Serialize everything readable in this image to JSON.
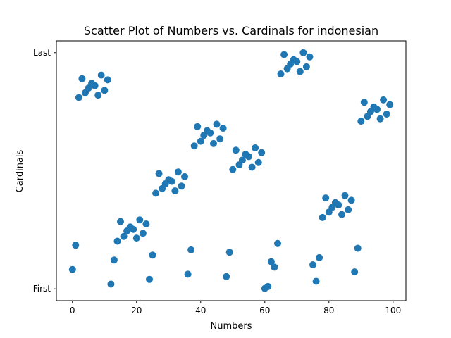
{
  "chart_data": {
    "type": "scatter",
    "title": "Scatter Plot of Numbers vs. Cardinals for indonesian",
    "xlabel": "Numbers",
    "ylabel": "Cardinals",
    "xlim": [
      -5,
      104
    ],
    "ylim": [
      -0.05,
      1.05
    ],
    "xticks": [
      0,
      20,
      40,
      60,
      80,
      100
    ],
    "yticks": [
      {
        "value": 0,
        "label": "First"
      },
      {
        "value": 1,
        "label": "Last"
      }
    ],
    "grid": false,
    "color": "#1f77b4",
    "points": [
      {
        "x": 0,
        "y": 0.082
      },
      {
        "x": 1,
        "y": 0.185
      },
      {
        "x": 2,
        "y": 0.81
      },
      {
        "x": 3,
        "y": 0.89
      },
      {
        "x": 4,
        "y": 0.83
      },
      {
        "x": 5,
        "y": 0.85
      },
      {
        "x": 6,
        "y": 0.87
      },
      {
        "x": 7,
        "y": 0.86
      },
      {
        "x": 8,
        "y": 0.82
      },
      {
        "x": 9,
        "y": 0.905
      },
      {
        "x": 10,
        "y": 0.84
      },
      {
        "x": 11,
        "y": 0.885
      },
      {
        "x": 12,
        "y": 0.02
      },
      {
        "x": 13,
        "y": 0.122
      },
      {
        "x": 14,
        "y": 0.202
      },
      {
        "x": 15,
        "y": 0.285
      },
      {
        "x": 16,
        "y": 0.222
      },
      {
        "x": 17,
        "y": 0.245
      },
      {
        "x": 18,
        "y": 0.262
      },
      {
        "x": 19,
        "y": 0.252
      },
      {
        "x": 20,
        "y": 0.215
      },
      {
        "x": 21,
        "y": 0.292
      },
      {
        "x": 22,
        "y": 0.235
      },
      {
        "x": 23,
        "y": 0.275
      },
      {
        "x": 24,
        "y": 0.04
      },
      {
        "x": 25,
        "y": 0.143
      },
      {
        "x": 26,
        "y": 0.405
      },
      {
        "x": 27,
        "y": 0.488
      },
      {
        "x": 28,
        "y": 0.425
      },
      {
        "x": 29,
        "y": 0.445
      },
      {
        "x": 30,
        "y": 0.462
      },
      {
        "x": 31,
        "y": 0.455
      },
      {
        "x": 32,
        "y": 0.415
      },
      {
        "x": 33,
        "y": 0.495
      },
      {
        "x": 34,
        "y": 0.435
      },
      {
        "x": 35,
        "y": 0.475
      },
      {
        "x": 36,
        "y": 0.062
      },
      {
        "x": 37,
        "y": 0.165
      },
      {
        "x": 38,
        "y": 0.605
      },
      {
        "x": 39,
        "y": 0.687
      },
      {
        "x": 40,
        "y": 0.625
      },
      {
        "x": 41,
        "y": 0.65
      },
      {
        "x": 42,
        "y": 0.67
      },
      {
        "x": 43,
        "y": 0.66
      },
      {
        "x": 44,
        "y": 0.615
      },
      {
        "x": 45,
        "y": 0.697
      },
      {
        "x": 46,
        "y": 0.635
      },
      {
        "x": 47,
        "y": 0.68
      },
      {
        "x": 48,
        "y": 0.052
      },
      {
        "x": 49,
        "y": 0.155
      },
      {
        "x": 50,
        "y": 0.505
      },
      {
        "x": 51,
        "y": 0.587
      },
      {
        "x": 52,
        "y": 0.525
      },
      {
        "x": 53,
        "y": 0.545
      },
      {
        "x": 54,
        "y": 0.57
      },
      {
        "x": 55,
        "y": 0.56
      },
      {
        "x": 56,
        "y": 0.515
      },
      {
        "x": 57,
        "y": 0.597
      },
      {
        "x": 58,
        "y": 0.535
      },
      {
        "x": 59,
        "y": 0.577
      },
      {
        "x": 60,
        "y": 0.002
      },
      {
        "x": 61,
        "y": 0.01
      },
      {
        "x": 62,
        "y": 0.115
      },
      {
        "x": 63,
        "y": 0.092
      },
      {
        "x": 64,
        "y": 0.192
      },
      {
        "x": 65,
        "y": 0.91
      },
      {
        "x": 66,
        "y": 0.992
      },
      {
        "x": 67,
        "y": 0.932
      },
      {
        "x": 68,
        "y": 0.952
      },
      {
        "x": 69,
        "y": 0.97
      },
      {
        "x": 70,
        "y": 0.962
      },
      {
        "x": 71,
        "y": 0.92
      },
      {
        "x": 72,
        "y": 1.0
      },
      {
        "x": 73,
        "y": 0.94
      },
      {
        "x": 74,
        "y": 0.982
      },
      {
        "x": 75,
        "y": 0.102
      },
      {
        "x": 76,
        "y": 0.032
      },
      {
        "x": 77,
        "y": 0.132
      },
      {
        "x": 78,
        "y": 0.302
      },
      {
        "x": 79,
        "y": 0.385
      },
      {
        "x": 80,
        "y": 0.325
      },
      {
        "x": 81,
        "y": 0.345
      },
      {
        "x": 82,
        "y": 0.365
      },
      {
        "x": 83,
        "y": 0.355
      },
      {
        "x": 84,
        "y": 0.315
      },
      {
        "x": 85,
        "y": 0.395
      },
      {
        "x": 86,
        "y": 0.335
      },
      {
        "x": 87,
        "y": 0.375
      },
      {
        "x": 88,
        "y": 0.072
      },
      {
        "x": 89,
        "y": 0.172
      },
      {
        "x": 90,
        "y": 0.71
      },
      {
        "x": 91,
        "y": 0.79
      },
      {
        "x": 92,
        "y": 0.73
      },
      {
        "x": 93,
        "y": 0.75
      },
      {
        "x": 94,
        "y": 0.77
      },
      {
        "x": 95,
        "y": 0.76
      },
      {
        "x": 96,
        "y": 0.72
      },
      {
        "x": 97,
        "y": 0.8
      },
      {
        "x": 98,
        "y": 0.74
      },
      {
        "x": 99,
        "y": 0.78
      }
    ]
  }
}
